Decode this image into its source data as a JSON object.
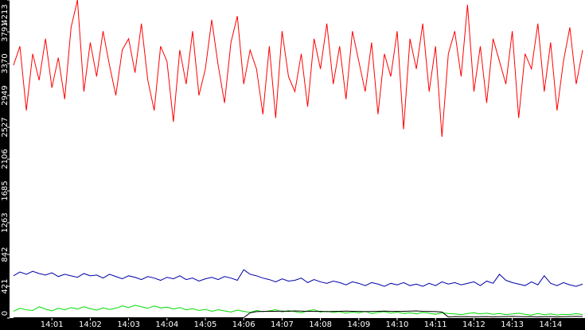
{
  "chart_data": {
    "type": "line",
    "categories": [
      null,
      null,
      null,
      null,
      null,
      null,
      "14:01",
      null,
      null,
      null,
      null,
      null,
      "14:02",
      null,
      null,
      null,
      null,
      null,
      "14:03",
      null,
      null,
      null,
      null,
      null,
      "14:04",
      null,
      null,
      null,
      null,
      null,
      "14:05",
      null,
      null,
      null,
      null,
      null,
      "14:06",
      null,
      null,
      null,
      null,
      null,
      "14:07",
      null,
      null,
      null,
      null,
      null,
      "14:08",
      null,
      null,
      null,
      null,
      null,
      "14:09",
      null,
      null,
      null,
      null,
      null,
      "14:10",
      null,
      null,
      null,
      null,
      null,
      "14:11",
      null,
      null,
      null,
      null,
      null,
      "14:12",
      null,
      null,
      null,
      null,
      null,
      "14:13",
      null,
      null,
      null,
      null,
      null,
      "14:14",
      null,
      null,
      null,
      null,
      null
    ],
    "ylim": [
      0,
      4213
    ],
    "yticks": [
      0,
      421,
      842,
      1263,
      1685,
      2106,
      2527,
      2949,
      3370,
      3791,
      4213
    ],
    "series": [
      {
        "color": "#ff0000",
        "values": [
          3350,
          3600,
          2750,
          3500,
          3150,
          3700,
          3050,
          3450,
          2900,
          3850,
          4213,
          3000,
          3650,
          3200,
          3800,
          3350,
          2950,
          3550,
          3700,
          3250,
          3900,
          3150,
          2750,
          3600,
          3400,
          2600,
          3550,
          3100,
          3800,
          2950,
          3300,
          3950,
          3350,
          2850,
          3650,
          4000,
          3100,
          3550,
          3300,
          2700,
          3600,
          2650,
          3800,
          3200,
          3000,
          3500,
          2800,
          3700,
          3300,
          3900,
          3100,
          3600,
          2900,
          3800,
          3400,
          3000,
          3650,
          2700,
          3500,
          3200,
          3800,
          2500,
          3700,
          3300,
          3900,
          3000,
          3600,
          2400,
          3500,
          3800,
          3200,
          4150,
          3000,
          3600,
          2850,
          3700,
          3400,
          3100,
          3800,
          2650,
          3500,
          3300,
          3900,
          3000,
          3650,
          2750,
          3400,
          3850,
          3100,
          3550
        ]
      },
      {
        "color": "#0000aa",
        "values": [
          560,
          610,
          580,
          620,
          590,
          570,
          600,
          550,
          580,
          560,
          540,
          590,
          560,
          570,
          530,
          580,
          550,
          520,
          560,
          540,
          510,
          550,
          530,
          500,
          540,
          520,
          560,
          510,
          530,
          490,
          520,
          540,
          510,
          550,
          530,
          500,
          640,
          580,
          560,
          530,
          510,
          480,
          520,
          490,
          500,
          530,
          470,
          510,
          480,
          460,
          490,
          470,
          440,
          480,
          460,
          430,
          470,
          450,
          420,
          460,
          440,
          470,
          430,
          450,
          420,
          460,
          430,
          480,
          450,
          470,
          440,
          460,
          480,
          430,
          490,
          460,
          580,
          500,
          470,
          450,
          430,
          480,
          440,
          560,
          460,
          430,
          470,
          440,
          420,
          450
        ]
      },
      {
        "color": "#00dd00",
        "values": [
          90,
          130,
          110,
          100,
          150,
          120,
          95,
          130,
          110,
          140,
          120,
          150,
          125,
          105,
          135,
          115,
          130,
          160,
          140,
          170,
          150,
          130,
          160,
          135,
          145,
          120,
          140,
          110,
          125,
          100,
          115,
          90,
          110,
          95,
          80,
          105,
          90,
          75,
          100,
          85,
          95,
          110,
          80,
          100,
          85,
          70,
          95,
          110,
          80,
          90,
          75,
          85,
          65,
          80,
          70,
          90,
          60,
          75,
          85,
          65,
          80,
          60,
          70,
          55,
          75,
          65,
          50,
          70,
          60,
          55,
          45,
          60,
          70,
          55,
          65,
          50,
          60,
          45,
          55,
          65,
          50,
          40,
          60,
          45,
          55,
          40,
          50,
          45,
          60,
          45
        ]
      },
      {
        "color": "#000000",
        "values": [
          5,
          5,
          5,
          5,
          5,
          5,
          5,
          5,
          5,
          5,
          5,
          5,
          5,
          5,
          5,
          5,
          5,
          5,
          5,
          5,
          5,
          5,
          5,
          5,
          5,
          5,
          5,
          5,
          5,
          5,
          5,
          5,
          5,
          5,
          5,
          5,
          5,
          70,
          85,
          88,
          90,
          90,
          92,
          90,
          95,
          92,
          90,
          88,
          90,
          85,
          88,
          90,
          92,
          90,
          88,
          85,
          88,
          90,
          92,
          90,
          88,
          90,
          92,
          95,
          90,
          88,
          85,
          80,
          15,
          20,
          18,
          20,
          15,
          18,
          20,
          15,
          18,
          20,
          22,
          20,
          18,
          20,
          15,
          18,
          20,
          15,
          18,
          20,
          22,
          20
        ]
      }
    ]
  }
}
